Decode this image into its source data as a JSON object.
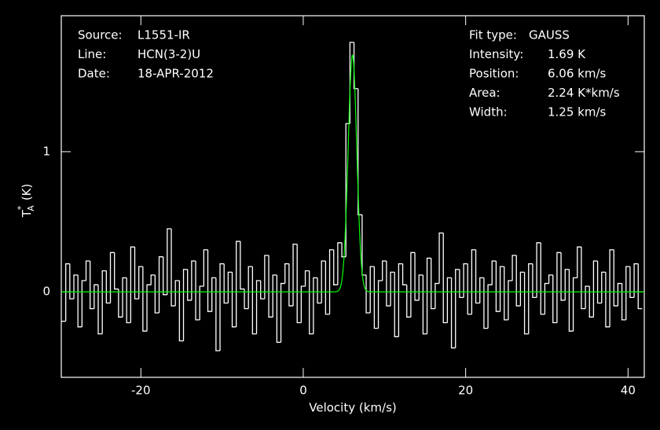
{
  "chart_data": {
    "type": "spectrum",
    "annotations": [
      {
        "label": "Source:",
        "value": "L1551-IR"
      },
      {
        "label": "Line:",
        "value": "HCN(3-2)U"
      },
      {
        "label": "Date:",
        "value": "18-APR-2012"
      }
    ],
    "fit_rows": [
      {
        "label": "Fit type:",
        "value": "GAUSS"
      },
      {
        "label": "Intensity:",
        "value": "1.69 K"
      },
      {
        "label": "Position:",
        "value": "6.06 km/s"
      },
      {
        "label": "Area:",
        "value": "2.24 K*km/s"
      },
      {
        "label": "Width:",
        "value": "1.25 km/s"
      }
    ],
    "fit": {
      "amplitude": 1.69,
      "center": 6.06,
      "fwhm": 1.25,
      "color": "#00ff00"
    },
    "xlabel": "Velocity (km/s)",
    "ylabel": {
      "main": "T",
      "sup": "*",
      "sub": "A",
      "unit": "(K)"
    },
    "xlim": [
      -29.8,
      42
    ],
    "ylim": [
      -0.61,
      1.97
    ],
    "xticks": [
      -20,
      0,
      20,
      40
    ],
    "yticks": [
      0,
      1
    ],
    "channel_width": 0.5,
    "series": [
      {
        "name": "HCN(3-2)U",
        "color": "#ffffff",
        "x": [
          -29.5,
          -29,
          -28.5,
          -28,
          -27.5,
          -27,
          -26.5,
          -26,
          -25.5,
          -25,
          -24.5,
          -24,
          -23.5,
          -23,
          -22.5,
          -22,
          -21.5,
          -21,
          -20.5,
          -20,
          -19.5,
          -19,
          -18.5,
          -18,
          -17.5,
          -17,
          -16.5,
          -16,
          -15.5,
          -15,
          -14.5,
          -14,
          -13.5,
          -13,
          -12.5,
          -12,
          -11.5,
          -11,
          -10.5,
          -10,
          -9.5,
          -9,
          -8.5,
          -8,
          -7.5,
          -7,
          -6.5,
          -6,
          -5.5,
          -5,
          -4.5,
          -4,
          -3.5,
          -3,
          -2.5,
          -2,
          -1.5,
          -1,
          -0.5,
          0,
          0.5,
          1,
          1.5,
          2,
          2.5,
          3,
          3.5,
          4,
          4.5,
          5,
          5.5,
          6,
          6.5,
          7,
          7.5,
          8,
          8.5,
          9,
          9.5,
          10,
          10.5,
          11,
          11.5,
          12,
          12.5,
          13,
          13.5,
          14,
          14.5,
          15,
          15.5,
          16,
          16.5,
          17,
          17.5,
          18,
          18.5,
          19,
          19.5,
          20,
          20.5,
          21,
          21.5,
          22,
          22.5,
          23,
          23.5,
          24,
          24.5,
          25,
          25.5,
          26,
          26.5,
          27,
          27.5,
          28,
          28.5,
          29,
          29.5,
          30,
          30.5,
          31,
          31.5,
          32,
          32.5,
          33,
          33.5,
          34,
          34.5,
          35,
          35.5,
          36,
          36.5,
          37,
          37.5,
          38,
          38.5,
          39,
          39.5,
          40,
          40.5,
          41,
          41.5
        ],
        "values": [
          -0.21,
          0.2,
          -0.05,
          0.12,
          -0.25,
          0.08,
          0.22,
          -0.12,
          0.05,
          -0.3,
          0.15,
          -0.08,
          0.28,
          0.02,
          -0.18,
          0.1,
          -0.22,
          0.32,
          -0.05,
          0.18,
          -0.28,
          0.05,
          0.12,
          -0.15,
          0.25,
          -0.02,
          0.45,
          -0.1,
          0.08,
          -0.35,
          0.16,
          -0.06,
          0.22,
          -0.2,
          0.04,
          0.3,
          -0.14,
          0.1,
          -0.42,
          0.2,
          -0.08,
          0.14,
          -0.25,
          0.36,
          0.02,
          -0.12,
          0.18,
          -0.3,
          0.08,
          -0.05,
          0.26,
          -0.18,
          0.12,
          -0.36,
          0.06,
          0.2,
          -0.1,
          0.34,
          -0.22,
          0.04,
          0.15,
          -0.3,
          0.1,
          -0.08,
          0.22,
          -0.16,
          0.3,
          0.05,
          0.35,
          0.25,
          1.2,
          1.78,
          1.45,
          0.55,
          0.12,
          -0.15,
          0.18,
          -0.26,
          0.08,
          0.22,
          -0.1,
          0.14,
          -0.32,
          0.2,
          0.05,
          -0.18,
          0.28,
          -0.06,
          0.12,
          -0.3,
          0.24,
          -0.12,
          0.06,
          0.42,
          -0.22,
          0.1,
          -0.4,
          0.16,
          -0.04,
          0.2,
          -0.16,
          0.3,
          -0.08,
          0.1,
          -0.26,
          0.05,
          0.22,
          -0.14,
          0.18,
          -0.2,
          0.08,
          0.26,
          -0.1,
          0.14,
          -0.3,
          0.2,
          -0.04,
          0.35,
          -0.16,
          0.06,
          0.12,
          -0.22,
          0.28,
          -0.06,
          0.16,
          -0.28,
          0.1,
          0.32,
          -0.12,
          0.04,
          -0.18,
          0.22,
          -0.08,
          0.14,
          -0.25,
          0.3,
          -0.1,
          0.06,
          -0.2,
          0.18,
          -0.04,
          0.2,
          -0.12
        ]
      }
    ]
  }
}
